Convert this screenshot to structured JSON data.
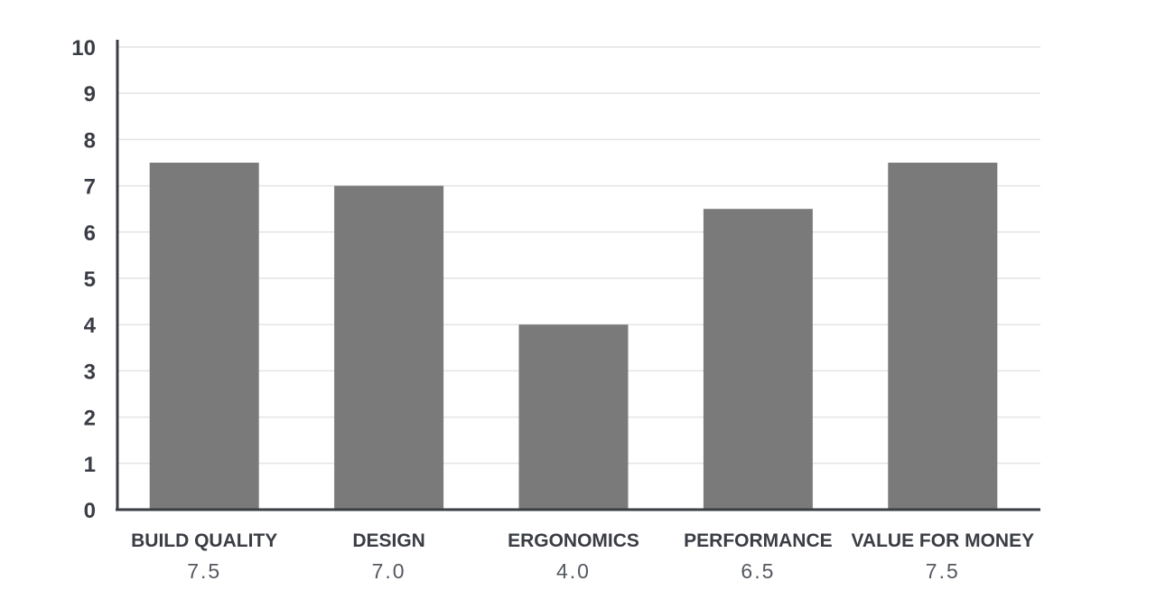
{
  "chart_data": {
    "type": "bar",
    "title": "",
    "xlabel": "",
    "ylabel": "",
    "categories": [
      "BUILD QUALITY",
      "DESIGN",
      "ERGONOMICS",
      "PERFORMANCE",
      "VALUE FOR MONEY"
    ],
    "values": [
      7.5,
      7.0,
      4.0,
      6.5,
      7.5
    ],
    "value_labels": [
      "7.5",
      "7.0",
      "4.0",
      "6.5",
      "7.5"
    ],
    "yticks": [
      "0",
      "1",
      "2",
      "3",
      "4",
      "5",
      "6",
      "7",
      "8",
      "9",
      "10"
    ],
    "ylim": [
      0,
      10
    ],
    "grid": true,
    "legend": "none",
    "colors": {
      "bar": "#7a7a7a",
      "axis": "#3a3d44",
      "grid": "#e4e4e4",
      "text": "#3a3d44"
    }
  }
}
